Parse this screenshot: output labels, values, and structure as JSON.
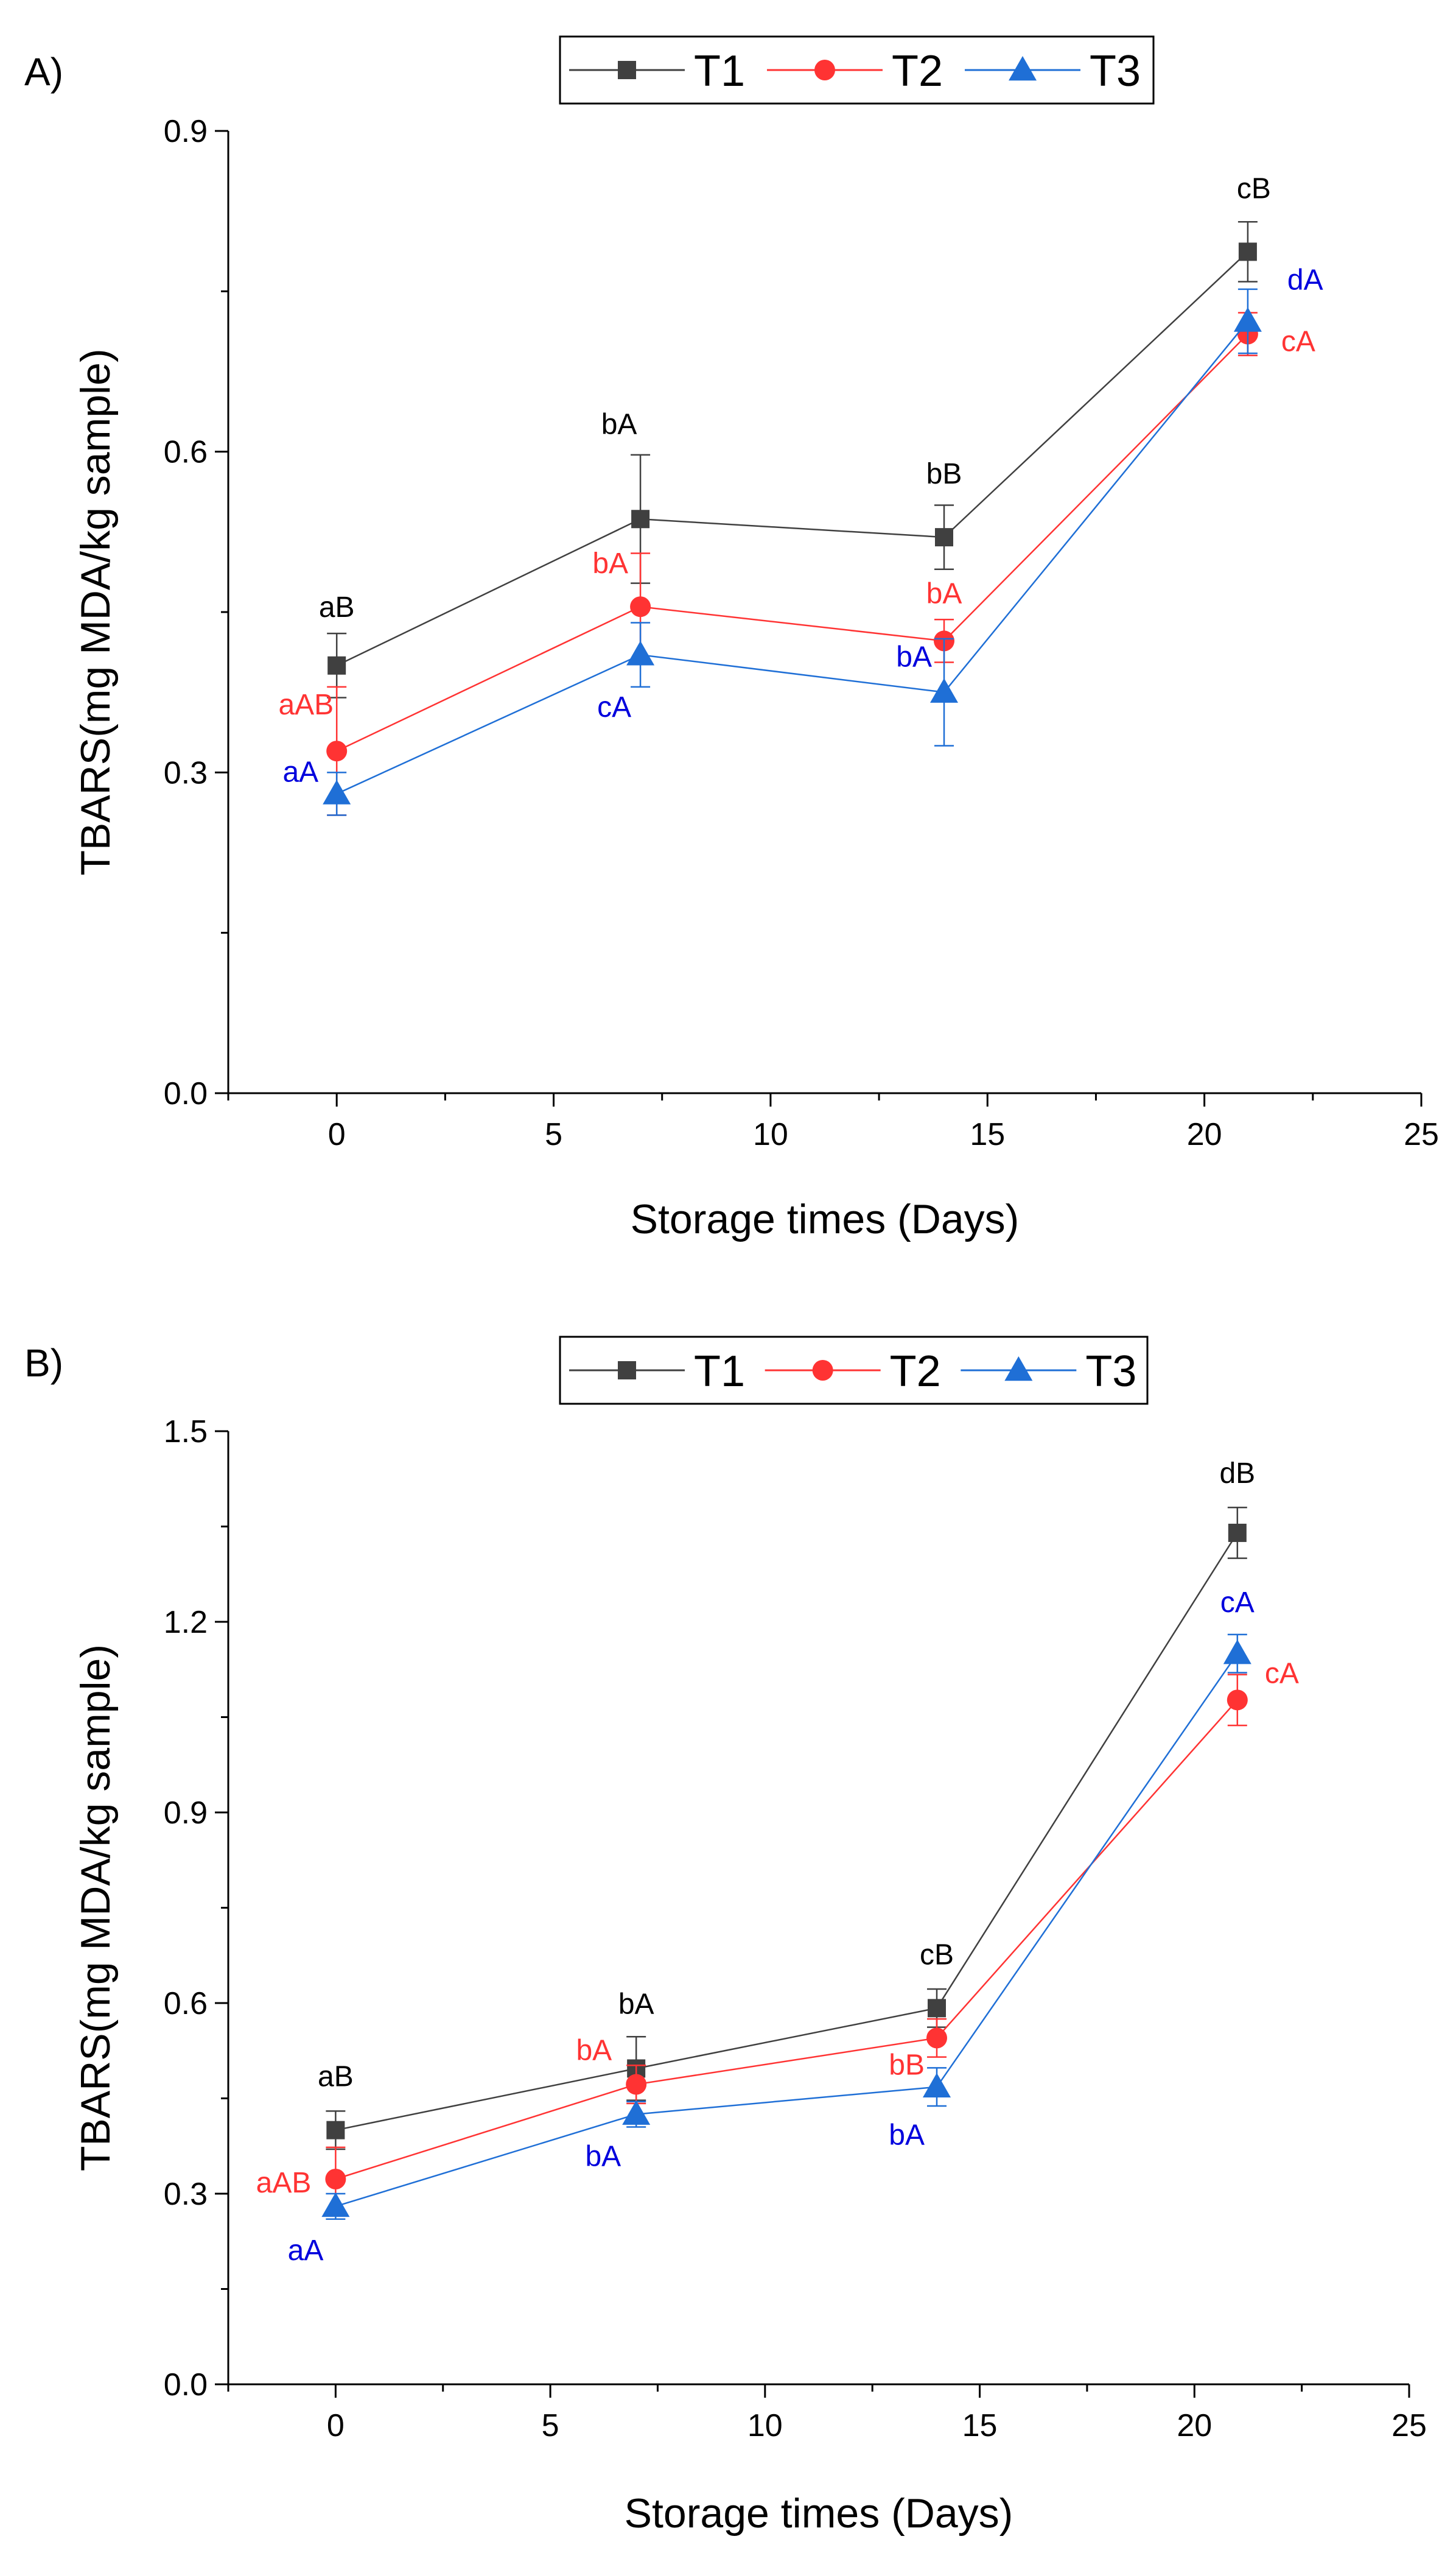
{
  "chart_data": [
    {
      "type": "line",
      "panel_label": "A)",
      "title": "",
      "xlabel": "Storage times (Days)",
      "ylabel": "TBARS(mg MDA/kg sample)",
      "xlim": [
        -2.5,
        25
      ],
      "ylim": [
        0,
        0.9
      ],
      "xticks": [
        0,
        5,
        10,
        15,
        20,
        25
      ],
      "xtick_labels": [
        "0",
        "5",
        "10",
        "15",
        "20",
        "25"
      ],
      "yticks": [
        0,
        0.3,
        0.6,
        0.9
      ],
      "ytick_labels": [
        "0.0",
        "0.3",
        "0.6",
        "0.9"
      ],
      "legend": "top-center",
      "x": [
        0,
        7,
        14,
        21
      ],
      "series": [
        {
          "name": "T1",
          "color": "#404040",
          "marker": "square",
          "values": [
            0.4,
            0.537,
            0.52,
            0.787
          ],
          "errors": [
            0.03,
            0.06,
            0.03,
            0.028
          ],
          "labels": [
            "aB",
            "bA",
            "bB",
            "cB"
          ]
        },
        {
          "name": "T2",
          "color": "#ff3333",
          "marker": "circle",
          "values": [
            0.32,
            0.455,
            0.423,
            0.71
          ],
          "errors": [
            0.06,
            0.05,
            0.02,
            0.02
          ],
          "labels": [
            "aAB",
            "bA",
            "bA",
            "cA"
          ]
        },
        {
          "name": "T3",
          "color": "#1f6fd6",
          "marker": "triangle",
          "values": [
            0.28,
            0.41,
            0.375,
            0.722
          ],
          "errors": [
            0.02,
            0.03,
            0.05,
            0.03
          ],
          "labels": [
            "aA",
            "cA",
            "bA",
            "dA"
          ]
        }
      ]
    },
    {
      "type": "line",
      "panel_label": "B)",
      "title": "",
      "xlabel": "Storage times (Days)",
      "ylabel": "TBARS(mg MDA/kg sample)",
      "xlim": [
        -2.5,
        25
      ],
      "ylim": [
        0,
        1.5
      ],
      "xticks": [
        0,
        5,
        10,
        15,
        20,
        25
      ],
      "xtick_labels": [
        "0",
        "5",
        "10",
        "15",
        "20",
        "25"
      ],
      "yticks": [
        0,
        0.3,
        0.6,
        0.9,
        1.2,
        1.5
      ],
      "ytick_labels": [
        "0.0",
        "0.3",
        "0.6",
        "0.9",
        "1.2",
        "1.5"
      ],
      "legend": "top-center",
      "x": [
        0,
        7,
        14,
        21
      ],
      "series": [
        {
          "name": "T1",
          "color": "#404040",
          "marker": "square",
          "values": [
            0.4,
            0.497,
            0.592,
            1.34
          ],
          "errors": [
            0.03,
            0.05,
            0.03,
            0.04
          ],
          "labels": [
            "aB",
            "bA",
            "cB",
            "dB"
          ]
        },
        {
          "name": "T2",
          "color": "#ff3333",
          "marker": "circle",
          "values": [
            0.323,
            0.472,
            0.545,
            1.077
          ],
          "errors": [
            0.05,
            0.03,
            0.03,
            0.04
          ],
          "labels": [
            "aAB",
            "bA",
            "bB",
            "cA"
          ]
        },
        {
          "name": "T3",
          "color": "#1f6fd6",
          "marker": "triangle",
          "values": [
            0.28,
            0.425,
            0.468,
            1.15
          ],
          "errors": [
            0.02,
            0.02,
            0.03,
            0.03
          ],
          "labels": [
            "aA",
            "bA",
            "bA",
            "cA"
          ]
        }
      ]
    }
  ]
}
